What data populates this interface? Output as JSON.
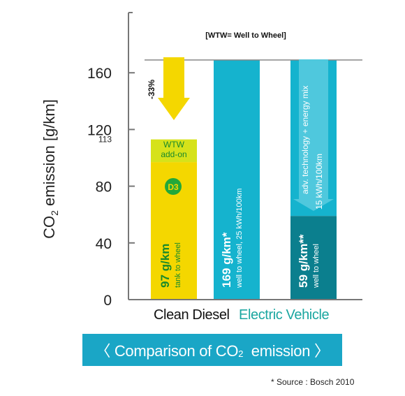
{
  "chart_data": {
    "type": "bar",
    "note": "[WTW= Well to Wheel]",
    "ylabel_prefix": "CO",
    "ylabel_sub": "2",
    "ylabel_suffix": " emission [g/km]",
    "ylim": [
      0,
      190
    ],
    "yticks": [
      0,
      40,
      80,
      120,
      160
    ],
    "extra_tick": 113,
    "reference_line": 169,
    "grid": false,
    "categories": [
      {
        "label": "Clean Diesel",
        "color": "#111111"
      },
      {
        "label": "Electric Vehicle",
        "color": "#1aa6a0"
      }
    ],
    "bars": [
      {
        "name": "diesel-tank",
        "bottom": 0,
        "top": 97,
        "color": "#f4d700",
        "big": "97 g/km",
        "small": "tank to wheel"
      },
      {
        "name": "diesel-wtw",
        "bottom": 97,
        "top": 113,
        "color": "#d6e21a",
        "labels": [
          "WTW",
          "add-on"
        ],
        "badge": "D3",
        "badge_color": "#22a83a"
      },
      {
        "name": "ev-25",
        "bottom": 0,
        "top": 169,
        "color": "#15b3ce",
        "big": "169 g/km*",
        "small": "well to wheel, 25 kWh/100km"
      },
      {
        "name": "ev-15-upper",
        "bottom": 59,
        "top": 169,
        "color": "#15b3ce",
        "labels": [
          "adv. technology + energy mix",
          "15 kWh/100km"
        ]
      },
      {
        "name": "ev-15-lower",
        "bottom": 0,
        "top": 59,
        "color": "#0b7f8e",
        "big": "59 g/km**",
        "small": "well to wheel"
      }
    ],
    "arrow_label": "-33%"
  },
  "caption": {
    "open": "〈 Comparison of CO",
    "sub": "2",
    "close": "  emission 〉"
  },
  "source": "* Source :  Bosch 2010"
}
